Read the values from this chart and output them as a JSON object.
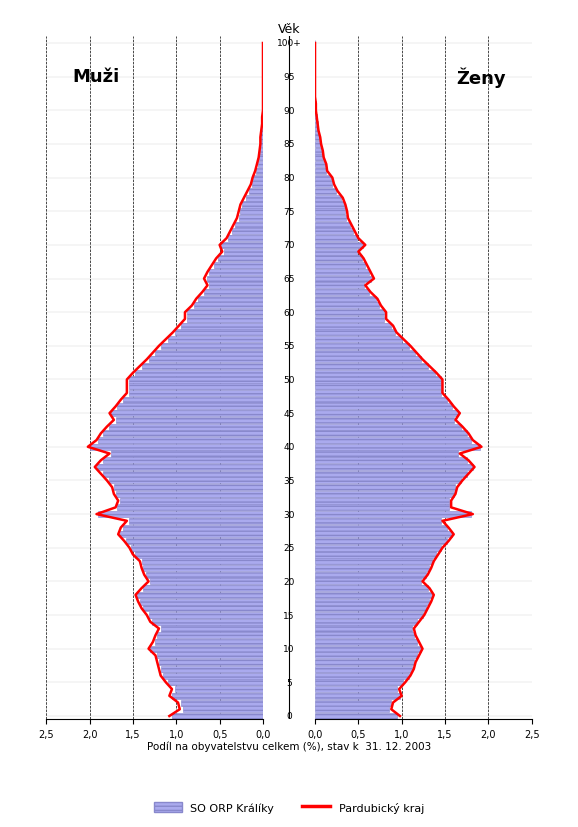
{
  "title": "Věk",
  "xlabel": "Podíl na obyvatelstvu celkem (%), stav k  31. 12. 2003",
  "males_label": "Muži",
  "females_label": "Ženy",
  "legend_bar": "SO ORP Králíky",
  "legend_line": "Pardubický kraj",
  "ages": [
    0,
    1,
    2,
    3,
    4,
    5,
    6,
    7,
    8,
    9,
    10,
    11,
    12,
    13,
    14,
    15,
    16,
    17,
    18,
    19,
    20,
    21,
    22,
    23,
    24,
    25,
    26,
    27,
    28,
    29,
    30,
    31,
    32,
    33,
    34,
    35,
    36,
    37,
    38,
    39,
    40,
    41,
    42,
    43,
    44,
    45,
    46,
    47,
    48,
    49,
    50,
    51,
    52,
    53,
    54,
    55,
    56,
    57,
    58,
    59,
    60,
    61,
    62,
    63,
    64,
    65,
    66,
    67,
    68,
    69,
    70,
    71,
    72,
    73,
    74,
    75,
    76,
    77,
    78,
    79,
    80,
    81,
    82,
    83,
    84,
    85,
    86,
    87,
    88,
    89,
    90,
    91,
    92,
    93,
    94,
    95,
    96,
    97,
    98,
    99,
    100
  ],
  "males_bar": [
    1.05,
    0.92,
    0.95,
    1.05,
    1.02,
    1.1,
    1.15,
    1.18,
    1.2,
    1.22,
    1.3,
    1.25,
    1.22,
    1.18,
    1.28,
    1.32,
    1.38,
    1.42,
    1.45,
    1.38,
    1.3,
    1.35,
    1.38,
    1.4,
    1.48,
    1.52,
    1.58,
    1.65,
    1.62,
    1.55,
    1.9,
    1.68,
    1.65,
    1.7,
    1.72,
    1.78,
    1.85,
    1.92,
    1.85,
    1.75,
    2.0,
    1.9,
    1.85,
    1.78,
    1.7,
    1.75,
    1.68,
    1.62,
    1.55,
    1.55,
    1.55,
    1.48,
    1.4,
    1.32,
    1.25,
    1.18,
    1.1,
    1.02,
    0.95,
    0.88,
    0.88,
    0.8,
    0.75,
    0.68,
    0.62,
    0.65,
    0.62,
    0.57,
    0.52,
    0.45,
    0.48,
    0.4,
    0.36,
    0.32,
    0.28,
    0.26,
    0.24,
    0.2,
    0.16,
    0.13,
    0.11,
    0.08,
    0.06,
    0.05,
    0.04,
    0.03,
    0.03,
    0.02,
    0.01,
    0.01,
    0.0,
    0.0,
    0.0,
    0.0,
    0.0,
    0.0,
    0.0,
    0.0,
    0.0,
    0.0,
    0.0
  ],
  "females_bar": [
    0.95,
    0.85,
    0.88,
    0.98,
    0.95,
    1.02,
    1.08,
    1.12,
    1.14,
    1.18,
    1.22,
    1.18,
    1.14,
    1.12,
    1.18,
    1.24,
    1.28,
    1.32,
    1.35,
    1.3,
    1.22,
    1.28,
    1.32,
    1.35,
    1.4,
    1.45,
    1.52,
    1.58,
    1.52,
    1.45,
    1.8,
    1.55,
    1.55,
    1.6,
    1.62,
    1.68,
    1.75,
    1.82,
    1.75,
    1.65,
    1.9,
    1.8,
    1.75,
    1.68,
    1.6,
    1.65,
    1.58,
    1.52,
    1.45,
    1.45,
    1.45,
    1.38,
    1.3,
    1.22,
    1.15,
    1.08,
    1.0,
    0.92,
    0.88,
    0.8,
    0.8,
    0.74,
    0.7,
    0.62,
    0.56,
    0.65,
    0.62,
    0.58,
    0.54,
    0.48,
    0.55,
    0.48,
    0.44,
    0.4,
    0.36,
    0.35,
    0.33,
    0.3,
    0.24,
    0.2,
    0.18,
    0.13,
    0.12,
    0.09,
    0.08,
    0.06,
    0.05,
    0.04,
    0.03,
    0.02,
    0.01,
    0.01,
    0.0,
    0.0,
    0.0,
    0.0,
    0.0,
    0.0,
    0.0,
    0.0,
    0.0
  ],
  "males_line": [
    1.08,
    0.96,
    0.98,
    1.08,
    1.05,
    1.12,
    1.18,
    1.2,
    1.22,
    1.24,
    1.32,
    1.27,
    1.24,
    1.2,
    1.3,
    1.34,
    1.4,
    1.44,
    1.47,
    1.4,
    1.32,
    1.37,
    1.4,
    1.42,
    1.5,
    1.54,
    1.6,
    1.67,
    1.64,
    1.57,
    1.92,
    1.7,
    1.67,
    1.72,
    1.74,
    1.8,
    1.87,
    1.94,
    1.87,
    1.77,
    2.02,
    1.92,
    1.87,
    1.8,
    1.72,
    1.77,
    1.7,
    1.64,
    1.57,
    1.57,
    1.57,
    1.5,
    1.42,
    1.34,
    1.27,
    1.2,
    1.12,
    1.04,
    0.97,
    0.9,
    0.9,
    0.82,
    0.77,
    0.7,
    0.64,
    0.68,
    0.64,
    0.59,
    0.54,
    0.47,
    0.5,
    0.42,
    0.38,
    0.34,
    0.3,
    0.28,
    0.26,
    0.22,
    0.18,
    0.14,
    0.12,
    0.09,
    0.07,
    0.05,
    0.04,
    0.03,
    0.03,
    0.02,
    0.01,
    0.01,
    0.0,
    0.0,
    0.0,
    0.0,
    0.0,
    0.0,
    0.0,
    0.0,
    0.0,
    0.0,
    0.0
  ],
  "females_line": [
    0.98,
    0.88,
    0.9,
    1.0,
    0.97,
    1.04,
    1.1,
    1.14,
    1.16,
    1.2,
    1.24,
    1.2,
    1.16,
    1.14,
    1.2,
    1.26,
    1.3,
    1.34,
    1.37,
    1.32,
    1.24,
    1.3,
    1.34,
    1.37,
    1.42,
    1.47,
    1.54,
    1.6,
    1.54,
    1.47,
    1.82,
    1.57,
    1.57,
    1.62,
    1.64,
    1.7,
    1.77,
    1.84,
    1.77,
    1.67,
    1.92,
    1.82,
    1.77,
    1.7,
    1.62,
    1.67,
    1.6,
    1.54,
    1.47,
    1.47,
    1.47,
    1.4,
    1.32,
    1.24,
    1.17,
    1.1,
    1.02,
    0.94,
    0.9,
    0.82,
    0.82,
    0.76,
    0.72,
    0.64,
    0.58,
    0.68,
    0.64,
    0.6,
    0.56,
    0.5,
    0.58,
    0.5,
    0.46,
    0.42,
    0.38,
    0.37,
    0.35,
    0.32,
    0.26,
    0.22,
    0.2,
    0.14,
    0.13,
    0.1,
    0.09,
    0.07,
    0.06,
    0.04,
    0.03,
    0.02,
    0.01,
    0.01,
    0.0,
    0.0,
    0.0,
    0.0,
    0.0,
    0.0,
    0.0,
    0.0,
    0.0
  ],
  "bar_fill": "#aaaaee",
  "bar_edge": "#8888cc",
  "line_color": "#ff0000",
  "xlim": 2.5,
  "yticks": [
    0,
    5,
    10,
    15,
    20,
    25,
    30,
    35,
    40,
    45,
    50,
    55,
    60,
    65,
    70,
    75,
    80,
    85,
    90,
    95,
    100
  ],
  "xticks_male": [
    2.5,
    2.0,
    1.5,
    1.0,
    0.5,
    0.0
  ],
  "xticks_female": [
    0.0,
    0.5,
    1.0,
    1.5,
    2.0,
    2.5
  ],
  "background_color": "#ffffff"
}
